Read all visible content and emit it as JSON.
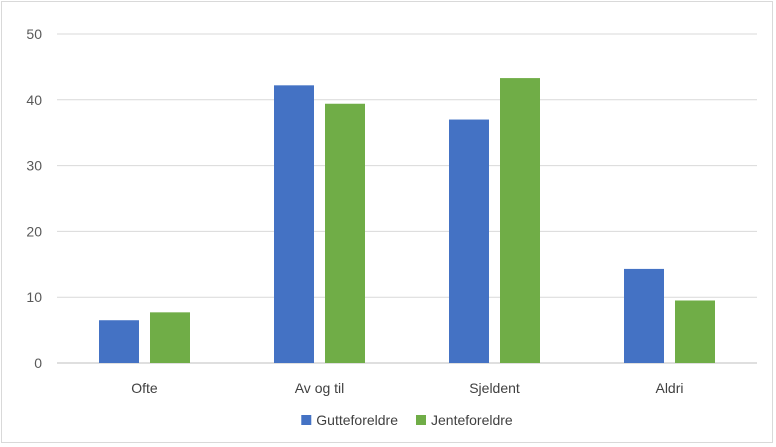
{
  "chart_data": {
    "type": "bar",
    "title": "",
    "xlabel": "",
    "ylabel": "",
    "categories": [
      "Ofte",
      "Av og til",
      "Sjeldent",
      "Aldri"
    ],
    "series": [
      {
        "name": "Gutteforeldre",
        "values": [
          6.5,
          42.2,
          37.0,
          14.3
        ],
        "color": "#4472c4"
      },
      {
        "name": "Jenteforeldre",
        "values": [
          7.7,
          39.4,
          43.3,
          9.5
        ],
        "color": "#70ad47"
      }
    ],
    "ylim": [
      0,
      50
    ],
    "yticks": [
      0,
      10,
      20,
      30,
      40,
      50
    ],
    "grid": true,
    "legend": "bottom-center"
  }
}
